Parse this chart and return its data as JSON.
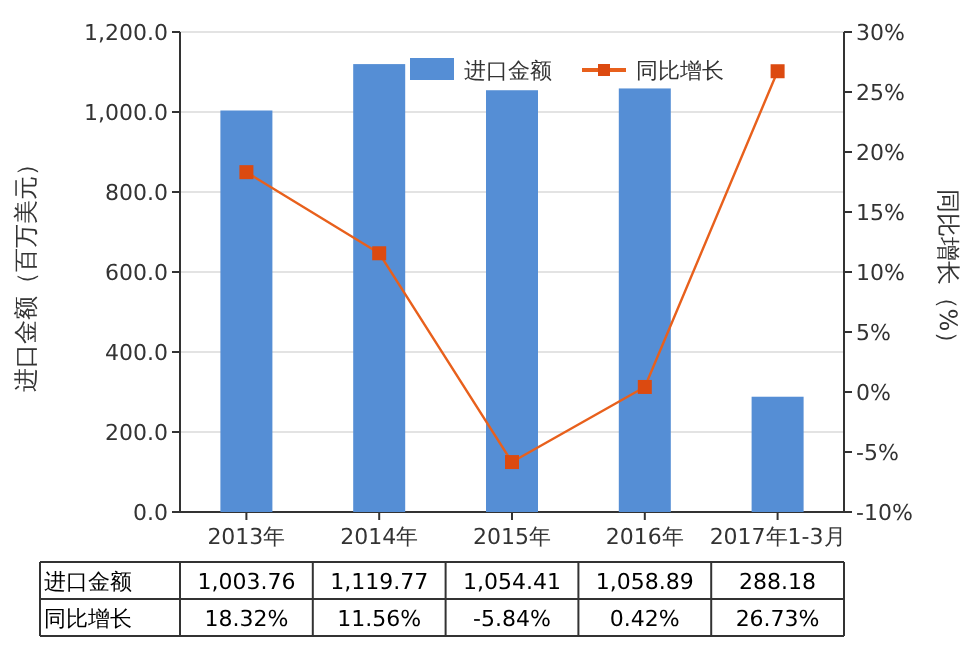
{
  "chart_data": {
    "type": "bar",
    "categories": [
      "2013年",
      "2014年",
      "2015年",
      "2016年",
      "2017年1-3月"
    ],
    "ylabel": "进口金额（百万美元）",
    "y2label": "同比增长（%）",
    "series": [
      {
        "name": "进口金额",
        "color": "#558ed5",
        "values": [
          1003.76,
          1119.77,
          1054.41,
          1058.89,
          288.18
        ],
        "value_labels": [
          "1,003.76",
          "1,119.77",
          "1,054.41",
          "1,058.89",
          "288.18"
        ]
      },
      {
        "name": "同比增长",
        "type": "line",
        "axis": "y2",
        "color": "#e8601c",
        "marker": "square",
        "values": [
          18.32,
          11.56,
          -5.84,
          0.42,
          26.73
        ],
        "value_labels": [
          "18.32%",
          "11.56%",
          "-5.84%",
          "0.42%",
          "26.73%"
        ]
      }
    ],
    "ylim": [
      0,
      1200
    ],
    "yticks": [
      {
        "value": 0,
        "label": "0.0"
      },
      {
        "value": 200,
        "label": "200.0"
      },
      {
        "value": 400,
        "label": "400.0"
      },
      {
        "value": 600,
        "label": "600.0"
      },
      {
        "value": 800,
        "label": "800.0"
      },
      {
        "value": 1000,
        "label": "1,000.0"
      },
      {
        "value": 1200,
        "label": "1,200.0"
      }
    ],
    "y2lim": [
      -10,
      30
    ],
    "y2ticks": [
      {
        "value": -10,
        "label": "-10%"
      },
      {
        "value": -5,
        "label": "-5%"
      },
      {
        "value": 0,
        "label": "0%"
      },
      {
        "value": 5,
        "label": "5%"
      },
      {
        "value": 10,
        "label": "10%"
      },
      {
        "value": 15,
        "label": "15%"
      },
      {
        "value": 20,
        "label": "20%"
      },
      {
        "value": 25,
        "label": "25%"
      },
      {
        "value": 30,
        "label": "30%"
      }
    ],
    "grid": "y",
    "legend": "top right"
  }
}
